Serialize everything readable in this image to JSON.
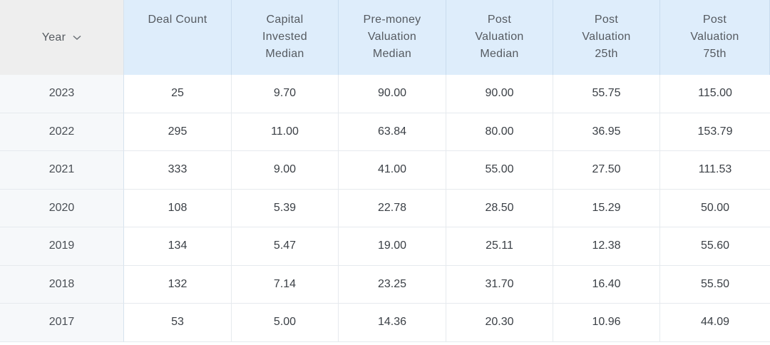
{
  "table": {
    "year_header": "Year",
    "columns": [
      [
        "Deal Count"
      ],
      [
        "Capital",
        "Invested",
        "Median"
      ],
      [
        "Pre-money",
        "Valuation",
        "Median"
      ],
      [
        "Post",
        "Valuation",
        "Median"
      ],
      [
        "Post",
        "Valuation",
        "25th"
      ],
      [
        "Post",
        "Valuation",
        "75th"
      ]
    ],
    "rows": [
      {
        "year": "2023",
        "values": [
          "25",
          "9.70",
          "90.00",
          "90.00",
          "55.75",
          "115.00"
        ]
      },
      {
        "year": "2022",
        "values": [
          "295",
          "11.00",
          "63.84",
          "80.00",
          "36.95",
          "153.79"
        ]
      },
      {
        "year": "2021",
        "values": [
          "333",
          "9.00",
          "41.00",
          "55.00",
          "27.50",
          "111.53"
        ]
      },
      {
        "year": "2020",
        "values": [
          "108",
          "5.39",
          "22.78",
          "28.50",
          "15.29",
          "50.00"
        ]
      },
      {
        "year": "2019",
        "values": [
          "134",
          "5.47",
          "19.00",
          "25.11",
          "12.38",
          "55.60"
        ]
      },
      {
        "year": "2018",
        "values": [
          "132",
          "7.14",
          "23.25",
          "31.70",
          "16.40",
          "55.50"
        ]
      },
      {
        "year": "2017",
        "values": [
          "53",
          "5.00",
          "14.36",
          "20.30",
          "10.96",
          "44.09"
        ]
      }
    ]
  },
  "icons": {
    "year_sort": "chevron-down-icon"
  },
  "colors": {
    "header_bg": "#deedfb",
    "year_header_bg": "#eeeeee",
    "year_col_bg": "#f6f8fa"
  }
}
